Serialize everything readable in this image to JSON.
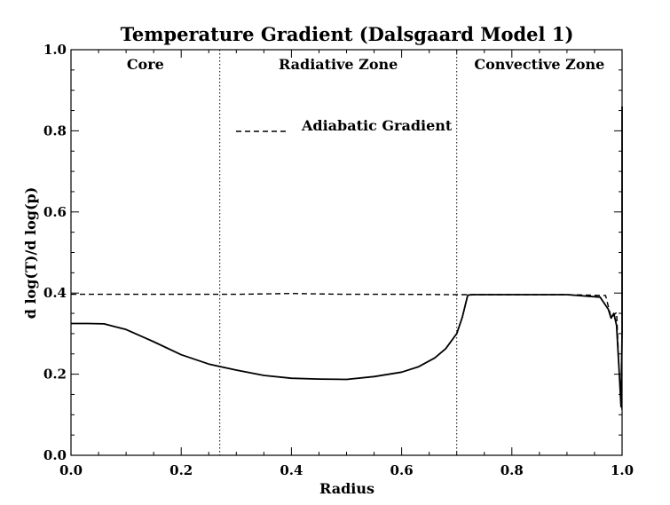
{
  "chart_data": {
    "type": "line",
    "title": "Temperature Gradient (Dalsgaard Model 1)",
    "xlabel": "Radius",
    "ylabel": "d log(T)/d log(p)",
    "xlim": [
      0.0,
      1.0
    ],
    "ylim": [
      0.0,
      1.0
    ],
    "x_ticks": [
      "0.0",
      "0.2",
      "0.4",
      "0.6",
      "0.8",
      "1.0"
    ],
    "x_tick_values": [
      0.0,
      0.2,
      0.4,
      0.6,
      0.8,
      1.0
    ],
    "y_ticks": [
      "0.0",
      "0.2",
      "0.4",
      "0.6",
      "0.8",
      "1.0"
    ],
    "y_tick_values": [
      0.0,
      0.2,
      0.4,
      0.6,
      0.8,
      1.0
    ],
    "grid": false,
    "regions": [
      {
        "label": "Core",
        "x_center": 0.135
      },
      {
        "label": "Radiative Zone",
        "x_center": 0.485
      },
      {
        "label": "Convective Zone",
        "x_center": 0.85
      }
    ],
    "boundaries": [
      0.27,
      0.7
    ],
    "legend": {
      "label": "Adiabatic Gradient",
      "style": "dashed",
      "position": "upper-middle"
    },
    "series": [
      {
        "name": "Adiabatic Gradient",
        "style": "dashed",
        "x": [
          0.0,
          0.1,
          0.2,
          0.3,
          0.4,
          0.5,
          0.6,
          0.7,
          0.72,
          0.9,
          0.97,
          0.98,
          0.99,
          0.995,
          1.0
        ],
        "y": [
          0.397,
          0.397,
          0.397,
          0.397,
          0.399,
          0.397,
          0.397,
          0.396,
          0.396,
          0.396,
          0.394,
          0.34,
          0.352,
          0.2,
          0.11
        ]
      },
      {
        "name": "",
        "style": "solid",
        "x": [
          0.0,
          0.03,
          0.06,
          0.1,
          0.15,
          0.2,
          0.25,
          0.3,
          0.35,
          0.4,
          0.45,
          0.5,
          0.55,
          0.6,
          0.63,
          0.66,
          0.68,
          0.7,
          0.71,
          0.72,
          0.73,
          0.8,
          0.9,
          0.96,
          0.975,
          0.98,
          0.985,
          0.99,
          0.995,
          0.998,
          1.0,
          1.0
        ],
        "y": [
          0.325,
          0.325,
          0.324,
          0.31,
          0.28,
          0.248,
          0.225,
          0.21,
          0.197,
          0.19,
          0.188,
          0.187,
          0.194,
          0.205,
          0.218,
          0.24,
          0.263,
          0.3,
          0.34,
          0.395,
          0.396,
          0.396,
          0.396,
          0.39,
          0.36,
          0.338,
          0.35,
          0.32,
          0.2,
          0.12,
          0.3,
          0.86
        ]
      }
    ]
  }
}
